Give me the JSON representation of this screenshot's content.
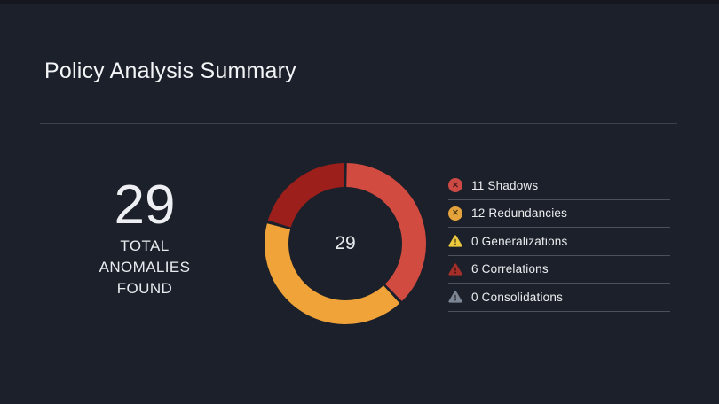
{
  "header": {
    "title": "Policy Analysis Summary"
  },
  "stats": {
    "total_value": "29",
    "total_label": "TOTAL ANOMALIES FOUND"
  },
  "chart_data": {
    "type": "pie",
    "donut": true,
    "title": "",
    "center_label": "29",
    "total": 29,
    "start_angle_deg": 0,
    "direction": "clockwise",
    "slices": [
      {
        "label": "Shadows",
        "value": 11,
        "color": "#d24b40"
      },
      {
        "label": "Redundancies",
        "value": 12,
        "color": "#f0a338"
      },
      {
        "label": "Correlations",
        "value": 6,
        "color": "#9c1f1b"
      }
    ],
    "legend_position": "right",
    "legend": [
      {
        "count": 11,
        "label": "Shadows",
        "icon": "circle-x-icon",
        "icon_color": "#cc4a43"
      },
      {
        "count": 12,
        "label": "Redundancies",
        "icon": "circle-x-icon",
        "icon_color": "#e5a33c"
      },
      {
        "count": 0,
        "label": "Generalizations",
        "icon": "warning-triangle-icon",
        "icon_color": "#edc93d"
      },
      {
        "count": 6,
        "label": "Correlations",
        "icon": "warning-triangle-icon",
        "icon_color": "#a42e28"
      },
      {
        "count": 0,
        "label": "Consolidations",
        "icon": "warning-triangle-icon",
        "icon_color": "#7d8694"
      }
    ]
  },
  "colors": {
    "background": "#1c202a",
    "divider": "#3c424c",
    "legend_divider": "#4a515c",
    "text_primary": "#f2f4f6",
    "text_secondary": "#e9ecef"
  }
}
